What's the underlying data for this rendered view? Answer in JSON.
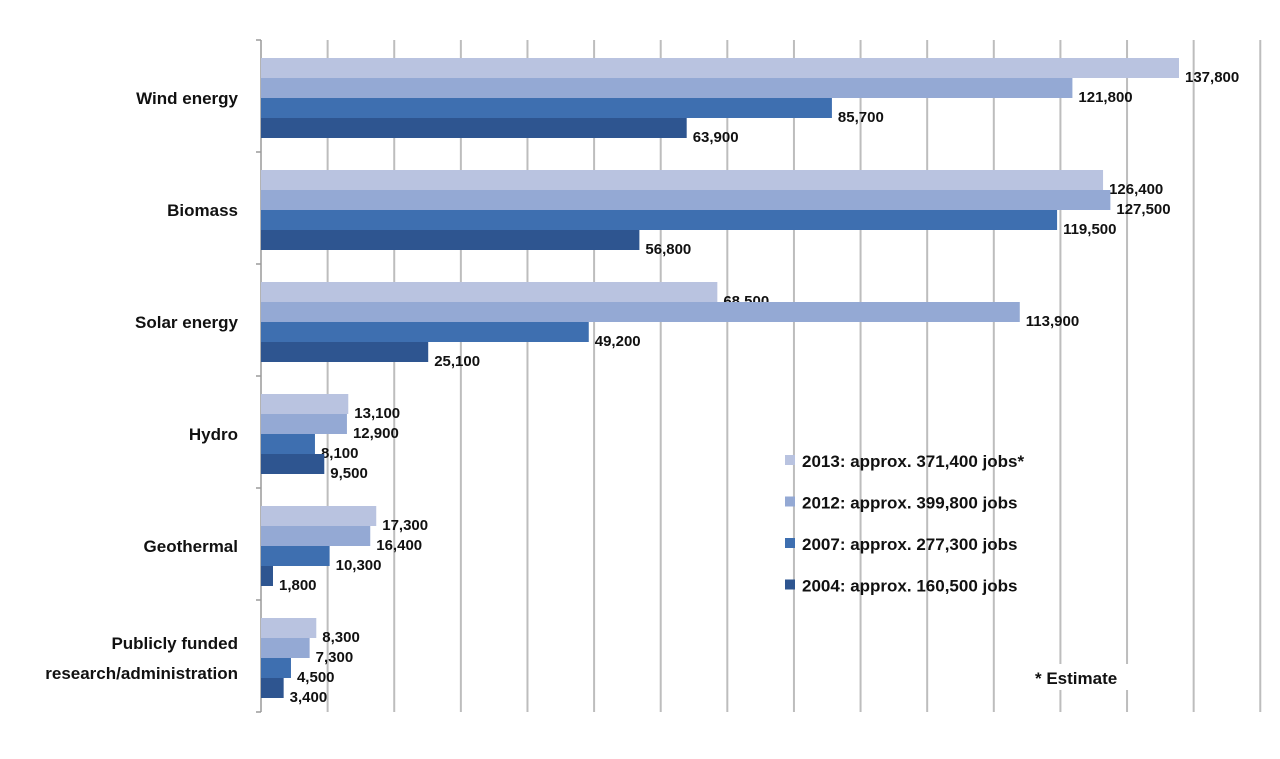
{
  "chart_data": {
    "type": "bar",
    "orientation": "horizontal",
    "title": "",
    "xlabel": "",
    "ylabel": "",
    "xlim": [
      0,
      150000
    ],
    "grid": true,
    "legend_placement": "bottom-right",
    "categories": [
      "Wind energy",
      "Biomass",
      "Solar energy",
      "Hydro",
      "Geothermal",
      "Publicly funded research/administration"
    ],
    "category_lines": [
      [
        "Wind energy"
      ],
      [
        "Biomass"
      ],
      [
        "Solar energy"
      ],
      [
        "Hydro"
      ],
      [
        "Geothermal"
      ],
      [
        "Publicly funded",
        "research/administration"
      ]
    ],
    "series": [
      {
        "name": "2013: approx. 371,400 jobs*",
        "color": "#b9c3e0",
        "values": [
          137800,
          126400,
          68500,
          13100,
          17300,
          8300
        ],
        "labels": [
          "137,800",
          "126,400",
          "68,500",
          "13,100",
          "17,300",
          "8,300"
        ]
      },
      {
        "name": "2012: approx. 399,800 jobs",
        "color": "#94a9d4",
        "values": [
          121800,
          127500,
          113900,
          12900,
          16400,
          7300
        ],
        "labels": [
          "121,800",
          "127,500",
          "113,900",
          "12,900",
          "16,400",
          "7,300"
        ]
      },
      {
        "name": "2007: approx. 277,300 jobs",
        "color": "#3e6fb0",
        "values": [
          85700,
          119500,
          49200,
          8100,
          10300,
          4500
        ],
        "labels": [
          "85,700",
          "119,500",
          "49,200",
          "8,100",
          "10,300",
          "4,500"
        ]
      },
      {
        "name": "2004: approx. 160,500 jobs",
        "color": "#2e5590",
        "values": [
          63900,
          56800,
          25100,
          9500,
          1800,
          3400
        ],
        "labels": [
          "63,900",
          "56,800",
          "25,100",
          "9,500",
          "1,800",
          "3,400"
        ]
      }
    ],
    "annotation": "* Estimate"
  }
}
